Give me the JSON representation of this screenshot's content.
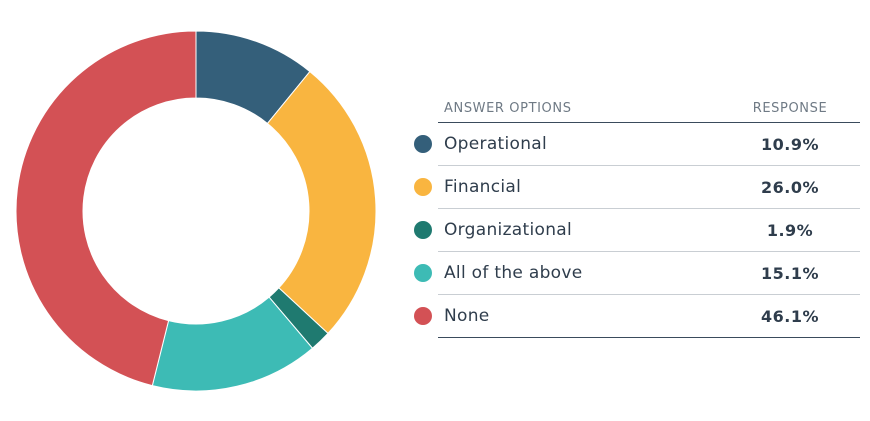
{
  "chart_data": {
    "type": "pie",
    "variant": "donut",
    "categories": [
      "Operational",
      "Financial",
      "Organizational",
      "All of the above",
      "None"
    ],
    "values": [
      10.9,
      26.0,
      1.9,
      15.1,
      46.1
    ],
    "value_labels": [
      "10.9%",
      "26.0%",
      "1.9%",
      "15.1%",
      "46.1%"
    ],
    "colors": [
      "#345f7a",
      "#f9b540",
      "#1f7a70",
      "#3dbbb5",
      "#d35155"
    ],
    "column_headers": [
      "ANSWER OPTIONS",
      "RESPONSE"
    ],
    "start_angle": "12 o'clock",
    "direction": "clockwise"
  }
}
